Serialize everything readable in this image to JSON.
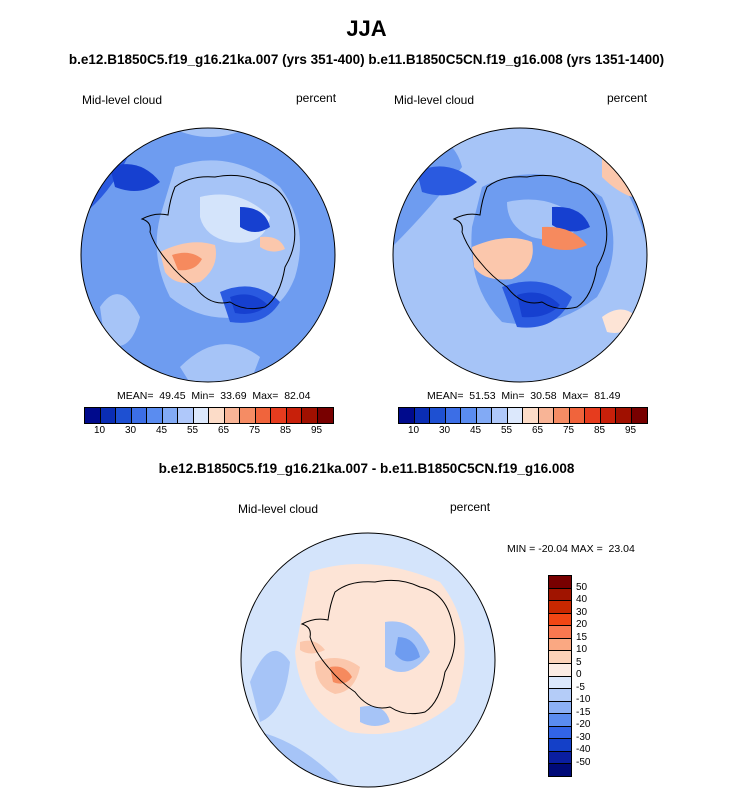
{
  "title": "JJA",
  "subtitle_top": "b.e12.B1850C5.f19_g16.21ka.007 (yrs 351-400) b.e11.B1850C5CN.f19_g16.008 (yrs 1351-1400)",
  "subtitle_diff": "b.e12.B1850C5.f19_g16.21ka.007 - b.e11.B1850C5CN.f19_g16.008",
  "chart_data": [
    {
      "type": "heatmap",
      "name": "b.e12.B1850C5.f19_g16.21ka.007",
      "variable": "Mid-level cloud",
      "units": "percent",
      "projection": "south polar stereographic",
      "stats": {
        "mean": "49.45",
        "min": "33.69",
        "max": "82.04"
      },
      "stats_text": "MEAN=  49.45  Min=  33.69  Max=  82.04",
      "levels": [
        10,
        20,
        30,
        40,
        45,
        50,
        55,
        60,
        65,
        70,
        75,
        80,
        85,
        90,
        95
      ],
      "tick_labels": [
        "10",
        "30",
        "45",
        "55",
        "65",
        "75",
        "85",
        "95"
      ]
    },
    {
      "type": "heatmap",
      "name": "b.e11.B1850C5CN.f19_g16.008",
      "variable": "Mid-level cloud",
      "units": "percent",
      "projection": "south polar stereographic",
      "stats": {
        "mean": "51.53",
        "min": "30.58",
        "max": "81.49"
      },
      "stats_text": "MEAN=  51.53  Min=  30.58  Max=  81.49",
      "levels": [
        10,
        20,
        30,
        40,
        45,
        50,
        55,
        60,
        65,
        70,
        75,
        80,
        85,
        90,
        95
      ],
      "tick_labels": [
        "10",
        "30",
        "45",
        "55",
        "65",
        "75",
        "85",
        "95"
      ]
    },
    {
      "type": "heatmap",
      "name": "difference",
      "variable": "Mid-level cloud",
      "units": "percent",
      "projection": "south polar stereographic",
      "stats": {
        "min": "-20.04",
        "max": "23.04"
      },
      "stats_text": "MIN = -20.04 MAX =  23.04",
      "levels": [
        50,
        40,
        30,
        20,
        15,
        10,
        5,
        0,
        -5,
        -10,
        -15,
        -20,
        -30,
        -40,
        -50
      ],
      "tick_labels": [
        "50",
        "40",
        "30",
        "20",
        "15",
        "10",
        "5",
        "0",
        "-5",
        "-10",
        "-15",
        "-20",
        "-30",
        "-40",
        "-50"
      ]
    }
  ],
  "colorbar_colors": [
    "#000a8c",
    "#0a2db4",
    "#1e50d2",
    "#3c6ee6",
    "#5a8cf0",
    "#82aaf5",
    "#afc8fa",
    "#dce8fc",
    "#fcdcc8",
    "#f8b496",
    "#f58c64",
    "#f0643c",
    "#e63c1e",
    "#c8200a",
    "#a01000",
    "#780000"
  ],
  "diff_colors": [
    "#780000",
    "#a01400",
    "#c82800",
    "#f04614",
    "#f87850",
    "#faa882",
    "#fcd2b8",
    "#fcece4",
    "#dce8fc",
    "#b4ccf8",
    "#8cb0f5",
    "#5a8cf0",
    "#3264e6",
    "#1440c8",
    "#0a1ea0",
    "#000a78"
  ],
  "map_colors": {
    "ocean_mid": "#6e9cf0",
    "ocean_light": "#a6c4f7",
    "very_light": "#d4e4fb",
    "deep": "#2a5ae0",
    "deeper": "#1640d0",
    "orange": "#f68a5e",
    "peach": "#fbc7ac",
    "pale_peach": "#fde4d6",
    "coast": "#000000"
  }
}
